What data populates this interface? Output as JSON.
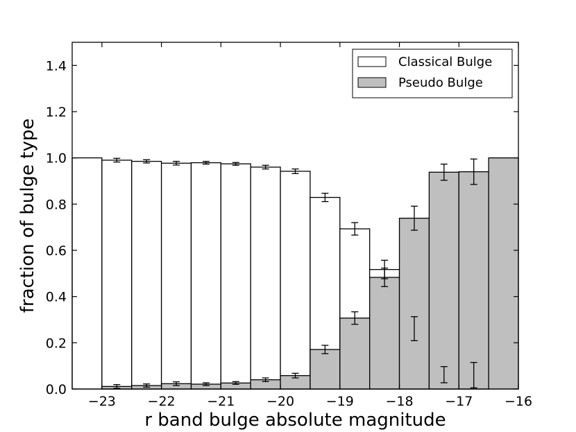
{
  "chart_data": {
    "type": "bar",
    "title": "",
    "xlabel": "r band bulge absolute magnitude",
    "ylabel": "fraction of bulge type",
    "xlim": [
      -23.5,
      -16
    ],
    "ylim": [
      0,
      1.5
    ],
    "xticks": [
      -23,
      -22,
      -21,
      -20,
      -19,
      -18,
      -17,
      -16
    ],
    "xtick_labels": [
      "−23",
      "−22",
      "−21",
      "−20",
      "−19",
      "−18",
      "−17",
      "−16"
    ],
    "yticks": [
      0.0,
      0.2,
      0.4,
      0.6,
      0.8,
      1.0,
      1.2,
      1.4
    ],
    "ytick_labels": [
      "0.0",
      "0.2",
      "0.4",
      "0.6",
      "0.8",
      "1.0",
      "1.2",
      "1.4"
    ],
    "bin_width": 0.5,
    "bin_left_edges": [
      -23.5,
      -23.0,
      -22.5,
      -22.0,
      -21.5,
      -21.0,
      -20.5,
      -20.0,
      -19.5,
      -19.0,
      -18.5,
      -18.0,
      -17.5,
      -17.0,
      -16.5
    ],
    "legend_position": "top-right",
    "grid": false,
    "series": [
      {
        "name": "Classical Bulge",
        "style": "outline",
        "color": "#ffffff",
        "edge_color": "#000000",
        "values": [
          1.0,
          0.99,
          0.985,
          0.977,
          0.979,
          0.974,
          0.96,
          0.942,
          0.829,
          0.693,
          0.517,
          0.261,
          0.062,
          0.06,
          0.0
        ],
        "errors": [
          0.0,
          0.008,
          0.007,
          0.008,
          0.006,
          0.006,
          0.008,
          0.01,
          0.018,
          0.027,
          0.04,
          0.052,
          0.035,
          0.055,
          0.0
        ]
      },
      {
        "name": "Pseudo Bulge",
        "style": "filled",
        "color": "#bfbfbf",
        "edge_color": "#000000",
        "values": [
          0.0,
          0.011,
          0.015,
          0.023,
          0.021,
          0.026,
          0.04,
          0.058,
          0.171,
          0.307,
          0.483,
          0.739,
          0.938,
          0.94,
          1.0
        ],
        "errors": [
          0.0,
          0.008,
          0.007,
          0.008,
          0.006,
          0.006,
          0.008,
          0.01,
          0.018,
          0.027,
          0.04,
          0.052,
          0.035,
          0.055,
          0.0
        ]
      }
    ]
  }
}
